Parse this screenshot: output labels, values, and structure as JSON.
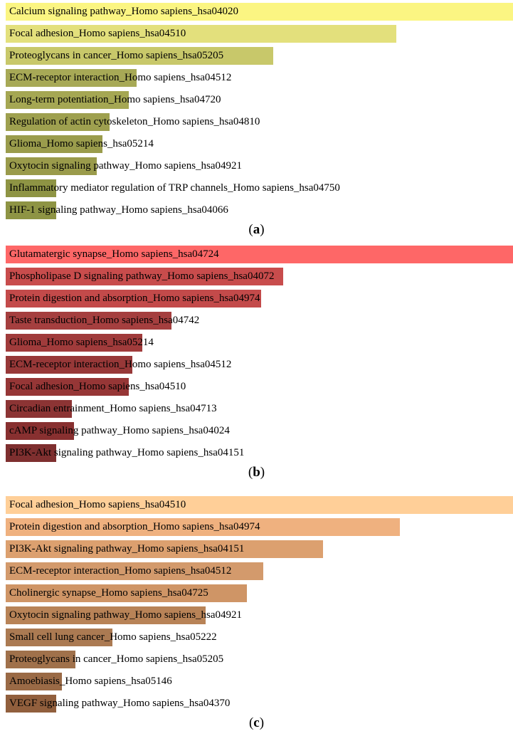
{
  "chart_data": [
    {
      "type": "bar",
      "orientation": "horizontal",
      "caption": "a",
      "categories": [
        "Calcium signaling pathway_Homo sapiens_hsa04020",
        "Focal adhesion_Homo sapiens_hsa04510",
        "Proteoglycans in cancer_Homo sapiens_hsa05205",
        "ECM-receptor interaction_Homo sapiens_hsa04512",
        "Long-term potentiation_Homo sapiens_hsa04720",
        "Regulation of actin cytoskeleton_Homo sapiens_hsa04810",
        "Glioma_Homo sapiens_hsa05214",
        "Oxytocin signaling pathway_Homo sapiens_hsa04921",
        "Inflammatory mediator regulation of TRP channels_Homo sapiens_hsa04750",
        "HIF-1 signaling pathway_Homo sapiens_hsa04066"
      ],
      "values": [
        1.0,
        0.77,
        0.528,
        0.258,
        0.243,
        0.205,
        0.191,
        0.18,
        0.1,
        0.1
      ],
      "colors": [
        "#fbf582",
        "#e3e07c",
        "#c8c86a",
        "#a7a956",
        "#a5a753",
        "#9ea04f",
        "#9a9c4c",
        "#9a9b4b",
        "#8e9444",
        "#8e9444"
      ]
    },
    {
      "type": "bar",
      "orientation": "horizontal",
      "caption": "b",
      "categories": [
        "Glutamatergic synapse_Homo sapiens_hsa04724",
        "Phospholipase D signaling pathway_Homo sapiens_hsa04072",
        "Protein digestion and absorption_Homo sapiens_hsa04974",
        "Taste transduction_Homo sapiens_hsa04742",
        "Glioma_Homo sapiens_hsa05214",
        "ECM-receptor interaction_Homo sapiens_hsa04512",
        "Focal adhesion_Homo sapiens_hsa04510",
        "Circadian entrainment_Homo sapiens_hsa04713",
        "cAMP signaling pathway_Homo sapiens_hsa04024",
        "PI3K-Akt signaling pathway_Homo sapiens_hsa04151"
      ],
      "values": [
        1.0,
        0.547,
        0.503,
        0.327,
        0.269,
        0.25,
        0.242,
        0.13,
        0.134,
        0.1
      ],
      "colors": [
        "#fe6767",
        "#c84c4c",
        "#c34a4a",
        "#a53f3f",
        "#a03b3b",
        "#973838",
        "#963636",
        "#8c3434",
        "#883030",
        "#7e2f2f"
      ]
    },
    {
      "type": "bar",
      "orientation": "horizontal",
      "caption": "c",
      "categories": [
        "Focal adhesion_Homo sapiens_hsa04510",
        "Protein digestion and absorption_Homo sapiens_hsa04974",
        "PI3K-Akt signaling pathway_Homo sapiens_hsa04151",
        "ECM-receptor interaction_Homo sapiens_hsa04512",
        "Cholinergic synapse_Homo sapiens_hsa04725",
        "Oxytocin signaling pathway_Homo sapiens_hsa04921",
        "Small cell lung cancer_Homo sapiens_hsa05222",
        "Proteoglycans in cancer_Homo sapiens_hsa05205",
        "Amoebiasis_Homo sapiens_hsa05146",
        "VEGF signaling pathway_Homo sapiens_hsa04370"
      ],
      "values": [
        1.0,
        0.777,
        0.625,
        0.508,
        0.476,
        0.394,
        0.211,
        0.137,
        0.111,
        0.1
      ],
      "colors": [
        "#ffcf98",
        "#efb17f",
        "#dca06f",
        "#d39a6c",
        "#cf9566",
        "#b88357",
        "#ab7a52",
        "#a0714b",
        "#9a6a46",
        "#915f3d"
      ]
    }
  ]
}
